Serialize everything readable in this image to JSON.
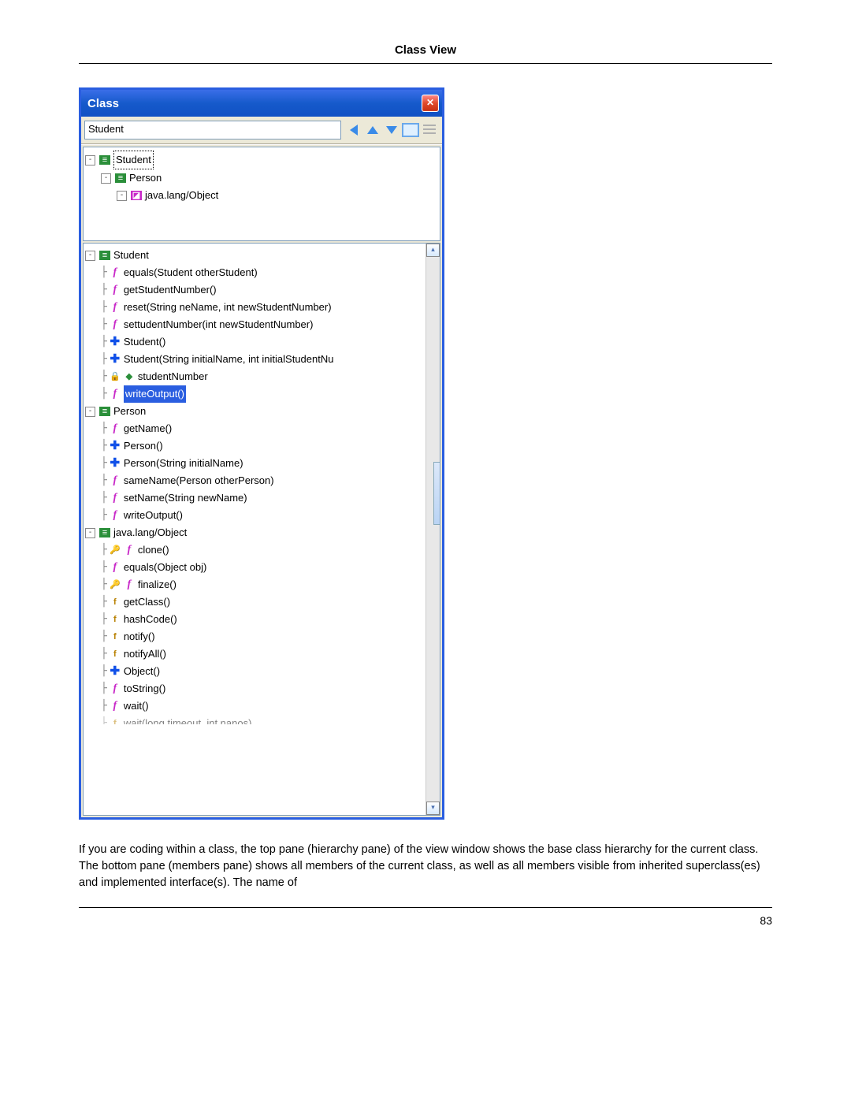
{
  "page": {
    "header": "Class View",
    "footer_pagenum": "83",
    "body_text": "If you are coding within a class, the top pane (hierarchy pane) of the view window shows the base class hierarchy for the current class. The bottom pane (members pane) shows all members of the current class, as well as all members visible from inherited superclass(es) and implemented interface(s). The name of"
  },
  "window": {
    "title": "Class",
    "combo_value": "Student",
    "close_glyph": "✕"
  },
  "hierarchy": {
    "root": "Student",
    "child1": "Person",
    "child2": "java.lang/Object"
  },
  "members": {
    "student": {
      "label": "Student",
      "items": [
        {
          "icon": "f",
          "label": "equals(Student otherStudent)"
        },
        {
          "icon": "f",
          "label": "getStudentNumber()"
        },
        {
          "icon": "f",
          "label": "reset(String neName, int newStudentNumber)"
        },
        {
          "icon": "f",
          "label": "settudentNumber(int newStudentNumber)"
        },
        {
          "icon": "plus",
          "label": "Student()"
        },
        {
          "icon": "plus",
          "label": "Student(String initialName, int initialStudentNu"
        },
        {
          "icon": "field",
          "label": "studentNumber",
          "prefix_icon": "lock"
        },
        {
          "icon": "f",
          "label": "writeOutput()",
          "selected": true
        }
      ]
    },
    "person": {
      "label": "Person",
      "items": [
        {
          "icon": "f",
          "label": "getName()"
        },
        {
          "icon": "plus",
          "label": "Person()"
        },
        {
          "icon": "plus",
          "label": "Person(String initialName)"
        },
        {
          "icon": "f",
          "label": "sameName(Person otherPerson)"
        },
        {
          "icon": "f",
          "label": "setName(String newName)"
        },
        {
          "icon": "f",
          "label": "writeOutput()"
        }
      ]
    },
    "object": {
      "label": "java.lang/Object",
      "items": [
        {
          "icon": "f",
          "label": "clone()",
          "prefix_icon": "key"
        },
        {
          "icon": "f",
          "label": "equals(Object obj)"
        },
        {
          "icon": "f",
          "label": "finalize()",
          "prefix_icon": "key"
        },
        {
          "icon": "ff",
          "label": "getClass()"
        },
        {
          "icon": "ff",
          "label": "hashCode()"
        },
        {
          "icon": "ff",
          "label": "notify()"
        },
        {
          "icon": "ff",
          "label": "notifyAll()"
        },
        {
          "icon": "plus",
          "label": "Object()"
        },
        {
          "icon": "f",
          "label": "toString()"
        },
        {
          "icon": "f",
          "label": "wait()"
        },
        {
          "icon": "ff",
          "label": "wait(long timeout, int nanos)",
          "cut": true
        }
      ]
    }
  },
  "style": {
    "titlebar_bg_from": "#3a6ee8",
    "titlebar_bg_to": "#1050c4",
    "selection_bg": "#2a5ee0",
    "window_border": "#2a5ee0",
    "pane_bg": "#ffffff",
    "chrome_bg": "#ece9d8"
  }
}
